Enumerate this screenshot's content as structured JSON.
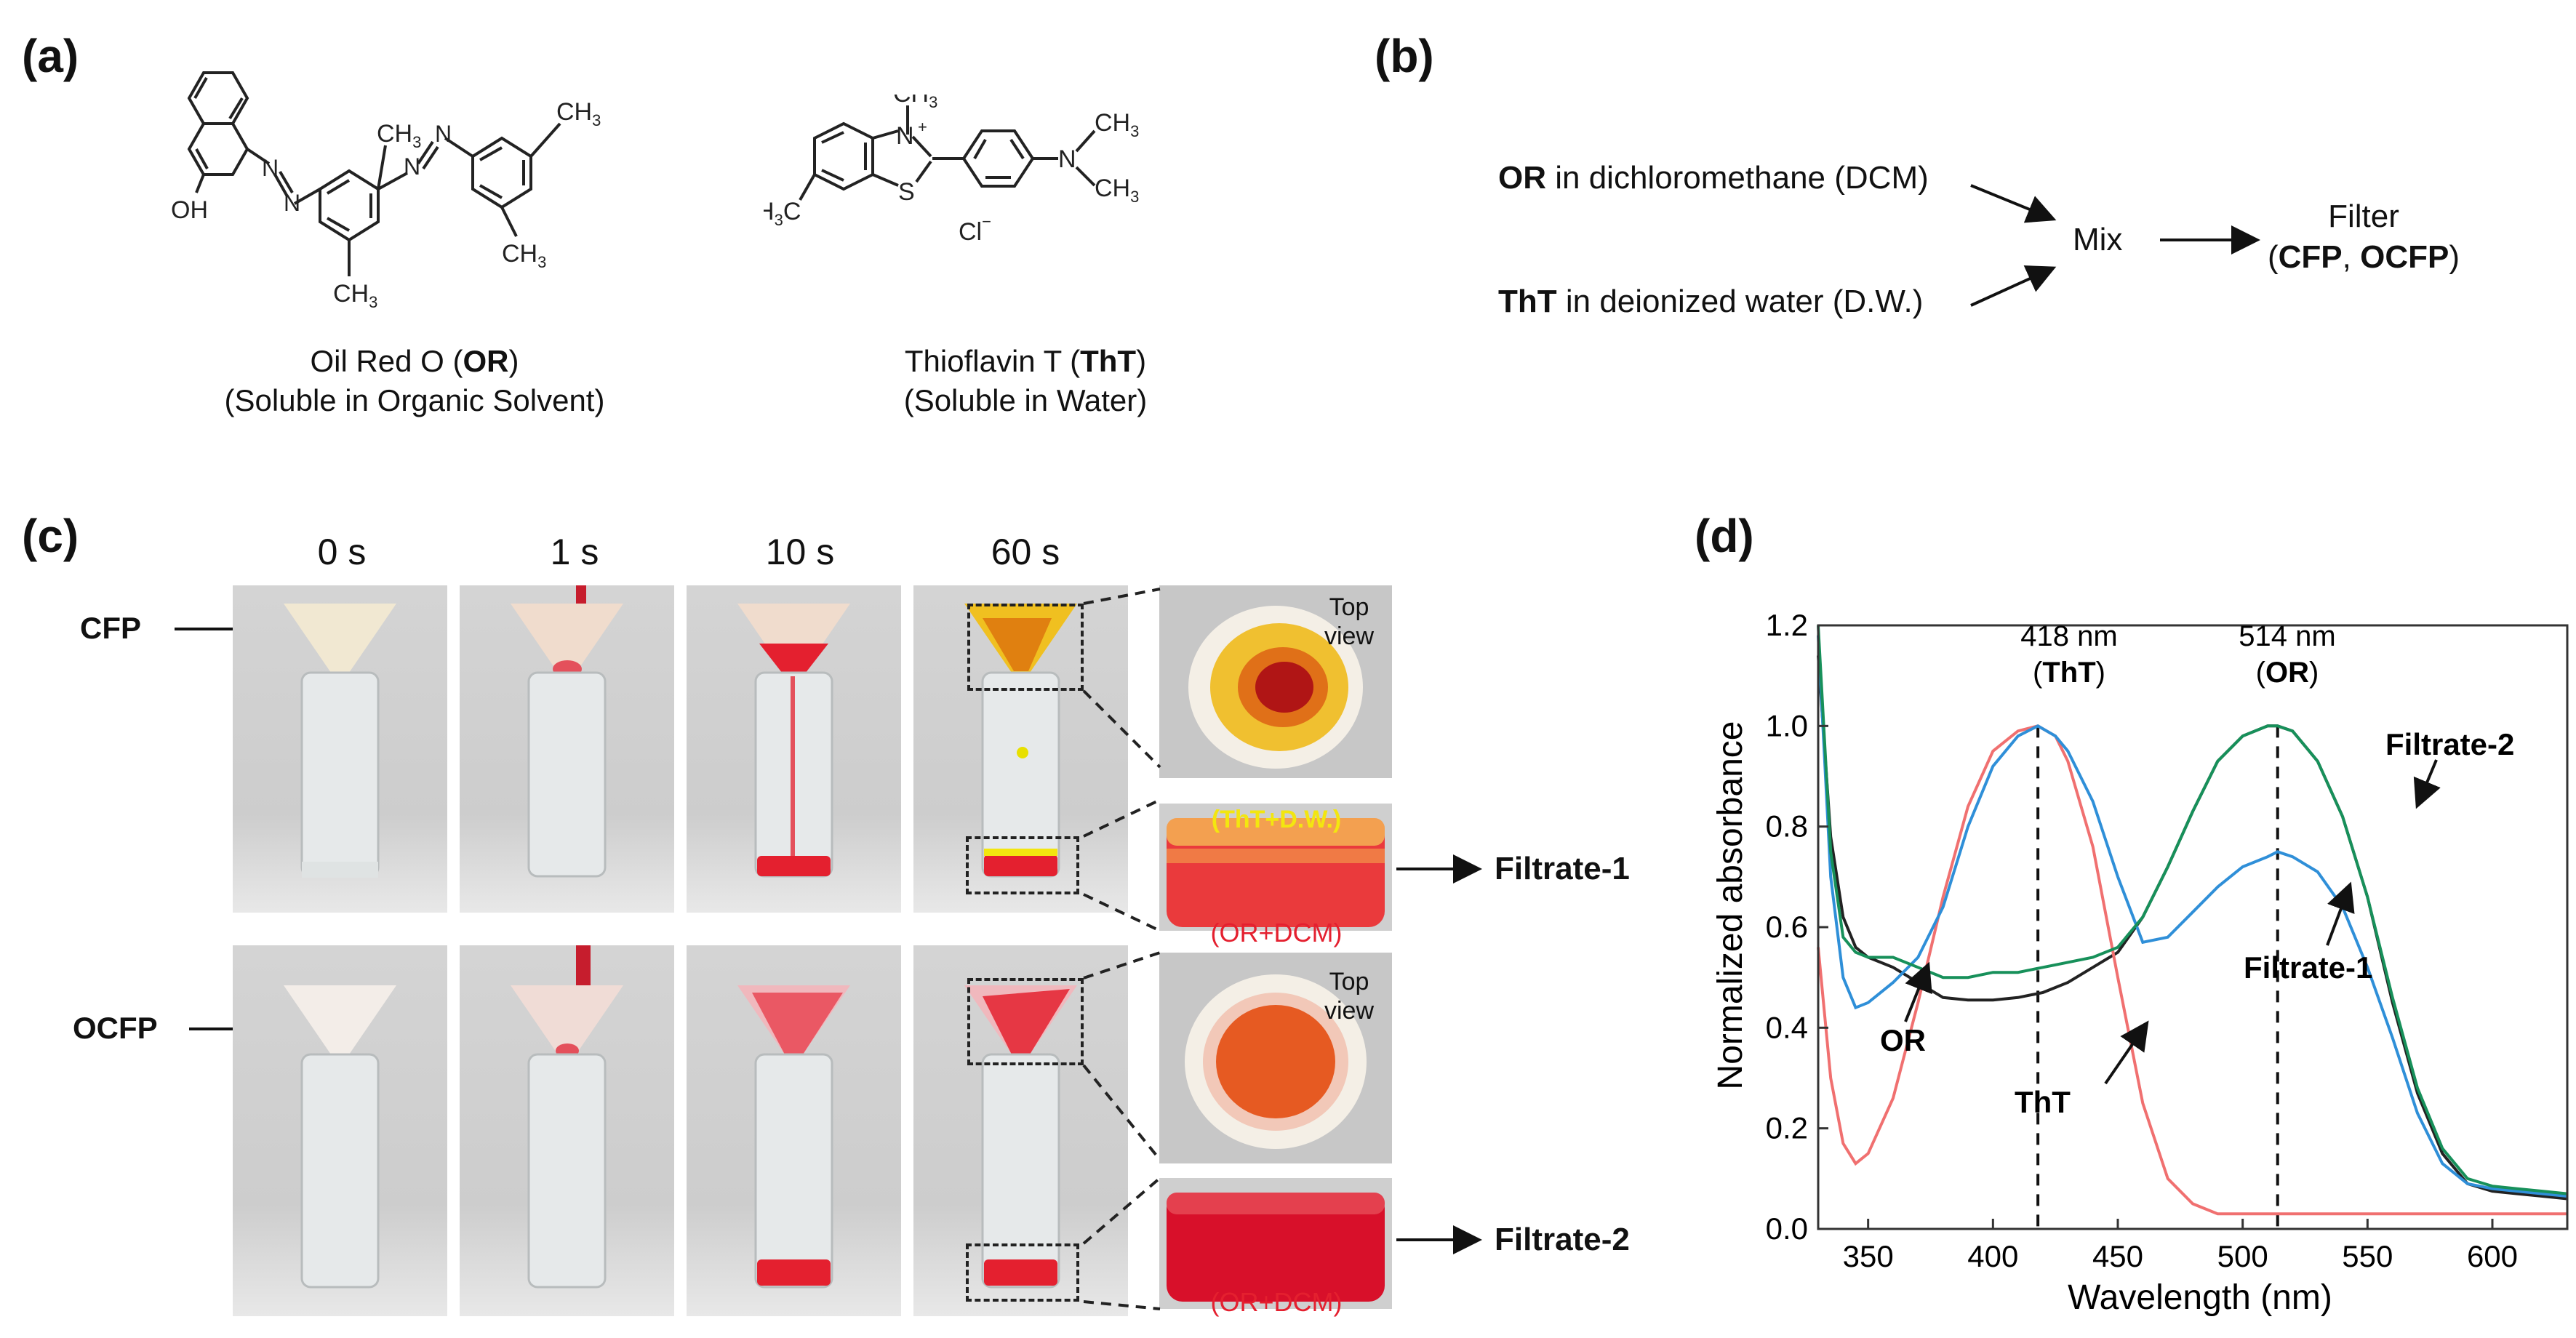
{
  "panel_a": {
    "label": "(a)",
    "or_name": "Oil Red O (",
    "or_abbr": "OR",
    "or_close": ")",
    "or_solubility": "(Soluble in Organic Solvent)",
    "tht_name": "Thioflavin T (",
    "tht_abbr": "ThT",
    "tht_close": ")",
    "tht_solubility": "(Soluble in Water)",
    "atoms": {
      "oh": "OH",
      "ch3": "CH",
      "sub3": "3",
      "n": "N",
      "s": "S",
      "plus": "+",
      "h3c": "H",
      "c": "C",
      "cl": "Cl",
      "minus": "−"
    }
  },
  "panel_b": {
    "label": "(b)",
    "line1_bold": "OR",
    "line1_rest": " in dichloromethane (DCM)",
    "line2_bold": "ThT",
    "line2_rest": " in deionized water (D.W.)",
    "mix": "Mix",
    "filter": "Filter",
    "filter_sub_open": "(",
    "filter_sub_cfp": "CFP",
    "filter_sub_sep": ", ",
    "filter_sub_ocfp": "OCFP",
    "filter_sub_close": ")"
  },
  "panel_c": {
    "label": "(c)",
    "times": [
      "0 s",
      "1 s",
      "10 s",
      "60 s"
    ],
    "row_labels": [
      "CFP",
      "OCFP"
    ],
    "top_view": [
      "Top",
      "view"
    ],
    "tht_dw": "(ThT+D.W.)",
    "or_dcm": "(OR+DCM)",
    "filtrate1": "Filtrate-1",
    "filtrate2": "Filtrate-2",
    "colors": {
      "or_red": "#e4202f",
      "tht_yellow": "#f3e60f",
      "photo_bg": "#c8c8c8"
    }
  },
  "panel_d": {
    "label": "(d)",
    "peak_tht_nm": "418 nm",
    "peak_tht_label": "ThT",
    "peak_or_nm": "514 nm",
    "peak_or_label": "OR",
    "peak_open": "(",
    "peak_close": ")",
    "annotations": {
      "filtrate2": "Filtrate-2",
      "filtrate1": "Filtrate-1",
      "or": "OR",
      "tht": "ThT"
    }
  },
  "chart_data": {
    "type": "line",
    "xlabel": "Wavelength (nm)",
    "ylabel": "Normalized absorbance",
    "xlim": [
      330,
      630
    ],
    "ylim": [
      0,
      1.2
    ],
    "xticks": [
      350,
      400,
      450,
      500,
      550,
      600
    ],
    "yticks": [
      0.0,
      0.2,
      0.4,
      0.6,
      0.8,
      1.0,
      1.2
    ],
    "ytick_labels": [
      "0.0",
      "0.2",
      "0.4",
      "0.6",
      "0.8",
      "1.0",
      "1.2"
    ],
    "vlines": [
      418,
      514
    ],
    "series": [
      {
        "name": "OR",
        "color": "#222222",
        "x": [
          330,
          335,
          340,
          345,
          350,
          360,
          370,
          380,
          390,
          400,
          410,
          420,
          430,
          440,
          450,
          460,
          470,
          480,
          490,
          500,
          510,
          514,
          520,
          530,
          540,
          550,
          560,
          570,
          580,
          590,
          600,
          610,
          620,
          630
        ],
        "y": [
          1.14,
          0.78,
          0.62,
          0.56,
          0.54,
          0.52,
          0.49,
          0.46,
          0.455,
          0.455,
          0.46,
          0.47,
          0.49,
          0.52,
          0.55,
          0.62,
          0.72,
          0.83,
          0.93,
          0.98,
          1.0,
          1.0,
          0.99,
          0.93,
          0.82,
          0.66,
          0.45,
          0.27,
          0.15,
          0.09,
          0.075,
          0.07,
          0.065,
          0.06
        ]
      },
      {
        "name": "ThT",
        "color": "#f07070",
        "x": [
          330,
          335,
          340,
          345,
          350,
          360,
          370,
          380,
          390,
          400,
          410,
          418,
          425,
          430,
          440,
          450,
          460,
          470,
          480,
          490,
          500,
          520,
          540,
          560,
          580,
          600,
          630
        ],
        "y": [
          0.56,
          0.3,
          0.17,
          0.13,
          0.15,
          0.26,
          0.45,
          0.66,
          0.84,
          0.95,
          0.99,
          1.0,
          0.98,
          0.93,
          0.76,
          0.5,
          0.25,
          0.1,
          0.05,
          0.03,
          0.03,
          0.03,
          0.03,
          0.03,
          0.03,
          0.03,
          0.03
        ]
      },
      {
        "name": "Filtrate-1",
        "color": "#2f8fd8",
        "x": [
          330,
          335,
          340,
          345,
          350,
          360,
          370,
          380,
          390,
          400,
          410,
          418,
          425,
          430,
          440,
          450,
          460,
          470,
          480,
          490,
          500,
          510,
          514,
          520,
          530,
          540,
          550,
          560,
          570,
          580,
          590,
          600,
          610,
          620,
          630
        ],
        "y": [
          1.18,
          0.7,
          0.5,
          0.44,
          0.45,
          0.49,
          0.54,
          0.64,
          0.8,
          0.92,
          0.98,
          1.0,
          0.98,
          0.95,
          0.85,
          0.7,
          0.57,
          0.58,
          0.63,
          0.68,
          0.72,
          0.74,
          0.75,
          0.74,
          0.71,
          0.64,
          0.52,
          0.38,
          0.23,
          0.13,
          0.09,
          0.08,
          0.075,
          0.07,
          0.065
        ]
      },
      {
        "name": "Filtrate-2",
        "color": "#17905a",
        "x": [
          330,
          335,
          340,
          345,
          350,
          360,
          370,
          380,
          390,
          400,
          410,
          420,
          430,
          440,
          450,
          460,
          470,
          480,
          490,
          500,
          510,
          514,
          520,
          530,
          540,
          550,
          560,
          570,
          580,
          590,
          600,
          610,
          620,
          630
        ],
        "y": [
          1.2,
          0.75,
          0.58,
          0.55,
          0.54,
          0.54,
          0.52,
          0.5,
          0.5,
          0.51,
          0.51,
          0.52,
          0.53,
          0.54,
          0.56,
          0.62,
          0.72,
          0.83,
          0.93,
          0.98,
          1.0,
          1.0,
          0.99,
          0.93,
          0.82,
          0.66,
          0.46,
          0.28,
          0.16,
          0.1,
          0.085,
          0.08,
          0.075,
          0.07
        ]
      }
    ]
  }
}
